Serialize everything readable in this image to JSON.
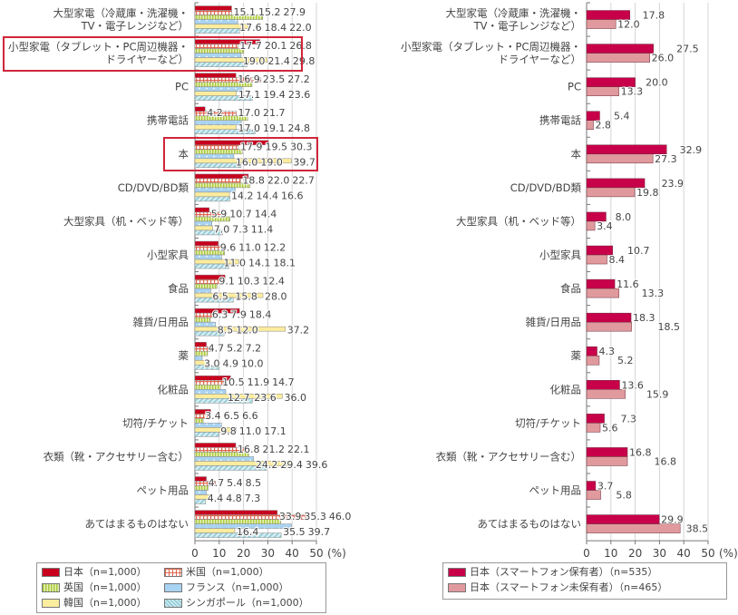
{
  "chart_data": [
    {
      "type": "bar",
      "orientation": "horizontal",
      "unit_label": "(%)",
      "xlim": [
        0,
        50
      ],
      "xticks": [
        "0",
        "10",
        "20",
        "30",
        "40",
        "50"
      ],
      "grid": true,
      "legend_placement": "bottom",
      "categories": [
        [
          "大型家電（冷蔵庫・洗濯機・",
          "TV・電子レンジなど）"
        ],
        [
          "小型家電（タブレット・PC周辺機器・",
          "ドライヤーなど）"
        ],
        [
          "PC"
        ],
        [
          "携帯電話"
        ],
        [
          "本"
        ],
        [
          "CD/DVD/BD類"
        ],
        [
          "大型家具（机・ベッド等）"
        ],
        [
          "小型家具"
        ],
        [
          "食品"
        ],
        [
          "雑貨/日用品"
        ],
        [
          "薬"
        ],
        [
          "化粧品"
        ],
        [
          "切符/チケット"
        ],
        [
          "衣類（靴・アクセサリー含む）"
        ],
        [
          "ペット用品"
        ],
        [
          "あてはまるものはない"
        ]
      ],
      "highlighted_categories": [
        1,
        4
      ],
      "series": [
        {
          "name": "日本（n=1,000）",
          "color": "#c8001e",
          "pattern": "solid",
          "values": [
            15.1,
            26.8,
            16.9,
            4.2,
            30.3,
            22.0,
            5.9,
            9.6,
            12.4,
            18.4,
            4.7,
            14.7,
            6.5,
            16.8,
            4.7,
            33.9
          ]
        },
        {
          "name": "米国（n=1,000）",
          "color": "#e0674f",
          "pattern": "check",
          "values": [
            15.2,
            17.7,
            27.2,
            17.0,
            17.9,
            18.8,
            10.7,
            11.0,
            10.3,
            7.9,
            7.2,
            11.9,
            6.6,
            21.2,
            8.5,
            46.0
          ]
        },
        {
          "name": "英国（n=1,000）",
          "color": "#a9c940",
          "pattern": "vstripe",
          "values": [
            27.9,
            20.1,
            23.5,
            21.7,
            19.5,
            22.7,
            14.4,
            12.2,
            9.1,
            6.3,
            5.2,
            10.5,
            3.4,
            22.1,
            5.4,
            35.3
          ]
        },
        {
          "name": "フランス（n=1,000）",
          "color": "#a9d3f2",
          "pattern": "dots",
          "values": [
            17.6,
            19.0,
            19.4,
            19.1,
            16.0,
            16.6,
            7.0,
            11.0,
            6.5,
            8.5,
            3.0,
            12.7,
            11.0,
            24.2,
            4.8,
            39.7
          ]
        },
        {
          "name": "韓国（n=1,000）",
          "color": "#fcec9e",
          "pattern": "solid",
          "values": [
            22.0,
            29.8,
            17.1,
            17.0,
            39.7,
            14.2,
            7.3,
            18.1,
            28.0,
            37.2,
            4.9,
            36.0,
            17.1,
            39.6,
            7.3,
            16.4
          ]
        },
        {
          "name": "シンガポール（n=1,000）",
          "color": "#8fcad6",
          "pattern": "diag",
          "values": [
            18.4,
            21.4,
            23.6,
            24.8,
            19.0,
            14.4,
            11.4,
            14.1,
            15.8,
            12.0,
            10.0,
            23.6,
            9.8,
            29.4,
            4.4,
            35.5
          ]
        }
      ]
    },
    {
      "type": "bar",
      "orientation": "horizontal",
      "unit_label": "(%)",
      "xlim": [
        0,
        50
      ],
      "xticks": [
        "0",
        "10",
        "20",
        "30",
        "40",
        "50"
      ],
      "grid": true,
      "legend_placement": "bottom",
      "categories": [
        [
          "大型家電（冷蔵庫・洗濯機・",
          "TV・電子レンジなど）"
        ],
        [
          "小型家電（タブレット・PC周辺機器・",
          "ドライヤーなど）"
        ],
        [
          "PC"
        ],
        [
          "携帯電話"
        ],
        [
          "本"
        ],
        [
          "CD/DVD/BD類"
        ],
        [
          "大型家具（机・ベッド等）"
        ],
        [
          "小型家具"
        ],
        [
          "食品"
        ],
        [
          "雑貨/日用品"
        ],
        [
          "薬"
        ],
        [
          "化粧品"
        ],
        [
          "切符/チケット"
        ],
        [
          "衣類（靴・アクセサリー含む）"
        ],
        [
          "ペット用品"
        ],
        [
          "あてはまるものはない"
        ]
      ],
      "series": [
        {
          "name": "日本（スマートフォン保有者）（n=535）",
          "color": "#c8004a",
          "pattern": "solid",
          "values": [
            17.8,
            27.5,
            20.0,
            5.4,
            32.9,
            23.9,
            8.0,
            10.7,
            11.6,
            18.3,
            4.3,
            13.6,
            7.3,
            16.8,
            3.7,
            29.9
          ]
        },
        {
          "name": "日本（スマートフォン未保有者）（n=465）",
          "color": "#e09a9e",
          "pattern": "solid",
          "values": [
            12.0,
            26.0,
            13.3,
            2.8,
            27.3,
            19.8,
            3.4,
            8.4,
            13.3,
            18.5,
            5.2,
            15.9,
            5.6,
            16.8,
            5.8,
            38.5
          ]
        }
      ]
    }
  ]
}
